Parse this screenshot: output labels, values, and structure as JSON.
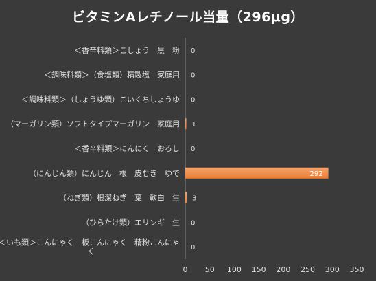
{
  "chart_data": {
    "type": "bar",
    "orientation": "horizontal",
    "title": "ビタミンAレチノール当量（296μg）",
    "categories": [
      "＜香辛料類＞こしょう　黒　粉",
      "＜調味料類＞（食塩類）精製塩　家庭用",
      "＜調味料類＞（しょうゆ類）こいくちしょうゆ",
      "（マーガリン類）ソフトタイプマーガリン　家庭用",
      "＜香辛料類＞にんにく　おろし",
      "（にんじん類）にんじん　根　皮むき　ゆで",
      "（ねぎ類）根深ねぎ　葉　軟白　生",
      "（ひらたけ類）エリンギ　生",
      "＜いも類＞こんにゃく　板こんにゃく　精粉こんにゃく"
    ],
    "category_lines": [
      [
        "＜香辛料類＞こしょう　黒　粉"
      ],
      [
        "＜調味料類＞（食塩類）精製塩　家庭用"
      ],
      [
        "＜調味料類＞（しょうゆ類）こいくちしょうゆ"
      ],
      [
        "（マーガリン類）ソフトタイプマーガリン　家庭用"
      ],
      [
        "＜香辛料類＞にんにく　おろし"
      ],
      [
        "（にんじん類）にんじん　根　皮むき　ゆで"
      ],
      [
        "（ねぎ類）根深ねぎ　葉　軟白　生"
      ],
      [
        "（ひらたけ類）エリンギ　生"
      ],
      [
        "＜いも類＞こんにゃく　板こんにゃく　精粉こんにゃ",
        "く"
      ]
    ],
    "values": [
      0,
      0,
      0,
      1,
      0,
      292,
      3,
      0,
      0
    ],
    "data_labels": [
      "0",
      "0",
      "0",
      "1",
      "0",
      "292",
      "3",
      "0",
      "0"
    ],
    "xlim": [
      0,
      350
    ],
    "xticks": [
      "0",
      "50",
      "100",
      "150",
      "200",
      "250",
      "300",
      "350"
    ],
    "grid": false,
    "legend": "none",
    "colors": {
      "bar": "#ed7d31",
      "bar_highlight": "#f4a46e",
      "background": "#3a3a3a",
      "text": "#e0e0e0",
      "axis": "#8a8a8a"
    }
  }
}
